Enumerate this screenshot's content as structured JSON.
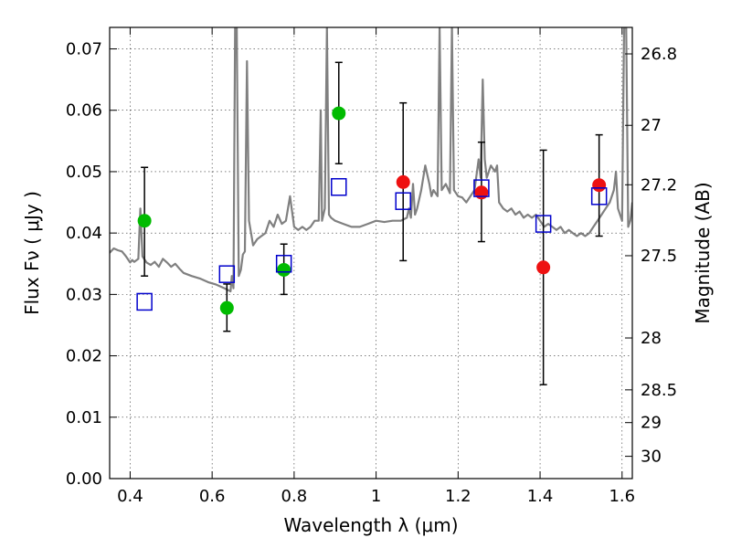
{
  "chart_data": {
    "type": "scatter",
    "title": "",
    "xlabel": "Wavelength  λ (μm)",
    "ylabel": "Flux  Fν  ( μJy )",
    "ylabel_right": "Magnitude (AB)",
    "xlim": [
      0.35,
      1.625
    ],
    "ylim": [
      0.0,
      0.0735
    ],
    "grid": true,
    "x_ticks": [
      0.4,
      0.6,
      0.8,
      1.0,
      1.2,
      1.4,
      1.6
    ],
    "x_tick_labels": [
      "0.4",
      "0.6",
      "0.8",
      "1",
      "1.2",
      "1.4",
      "1.6"
    ],
    "y_ticks": [
      0.0,
      0.01,
      0.02,
      0.03,
      0.04,
      0.05,
      0.06,
      0.07
    ],
    "y_tick_labels": [
      "0.00",
      "0.01",
      "0.02",
      "0.03",
      "0.04",
      "0.05",
      "0.06",
      "0.07"
    ],
    "mag_ticks": [
      "26.8",
      "27",
      "27.2",
      "27.5",
      "28",
      "28.5",
      "29",
      "30"
    ],
    "series": [
      {
        "style": "green-circle-errorbar",
        "color": "#00bb00",
        "points": [
          {
            "x": 0.435,
            "y": 0.042,
            "lo": 0.033,
            "hi": 0.0507
          },
          {
            "x": 0.636,
            "y": 0.0278,
            "lo": 0.024,
            "hi": 0.0317
          },
          {
            "x": 0.775,
            "y": 0.034,
            "lo": 0.03,
            "hi": 0.0382
          },
          {
            "x": 0.909,
            "y": 0.0595,
            "lo": 0.0513,
            "hi": 0.0678
          }
        ]
      },
      {
        "style": "red-circle-errorbar",
        "color": "#ee1111",
        "points": [
          {
            "x": 1.066,
            "y": 0.0483,
            "lo": 0.0355,
            "hi": 0.0612
          },
          {
            "x": 1.257,
            "y": 0.0466,
            "lo": 0.0386,
            "hi": 0.0548
          },
          {
            "x": 1.408,
            "y": 0.0344,
            "lo": 0.0153,
            "hi": 0.0535
          },
          {
            "x": 1.544,
            "y": 0.0478,
            "lo": 0.0395,
            "hi": 0.056
          }
        ]
      },
      {
        "style": "blue-open-square",
        "color": "#0000cc",
        "points": [
          {
            "x": 0.435,
            "y": 0.0288
          },
          {
            "x": 0.636,
            "y": 0.0333
          },
          {
            "x": 0.775,
            "y": 0.035
          },
          {
            "x": 0.909,
            "y": 0.0475
          },
          {
            "x": 1.066,
            "y": 0.0452
          },
          {
            "x": 1.257,
            "y": 0.0473
          },
          {
            "x": 1.408,
            "y": 0.0415
          },
          {
            "x": 1.544,
            "y": 0.046
          }
        ]
      }
    ],
    "spectrum": {
      "color": "#808080",
      "points": [
        [
          0.35,
          0.0368
        ],
        [
          0.36,
          0.0375
        ],
        [
          0.37,
          0.0372
        ],
        [
          0.38,
          0.037
        ],
        [
          0.39,
          0.0362
        ],
        [
          0.4,
          0.0352
        ],
        [
          0.405,
          0.0356
        ],
        [
          0.41,
          0.0353
        ],
        [
          0.42,
          0.0358
        ],
        [
          0.425,
          0.044
        ],
        [
          0.43,
          0.0362
        ],
        [
          0.44,
          0.0352
        ],
        [
          0.45,
          0.0348
        ],
        [
          0.46,
          0.0353
        ],
        [
          0.47,
          0.0345
        ],
        [
          0.48,
          0.0358
        ],
        [
          0.49,
          0.0352
        ],
        [
          0.5,
          0.0345
        ],
        [
          0.51,
          0.035
        ],
        [
          0.52,
          0.0342
        ],
        [
          0.53,
          0.0335
        ],
        [
          0.55,
          0.033
        ],
        [
          0.57,
          0.0326
        ],
        [
          0.59,
          0.032
        ],
        [
          0.61,
          0.0316
        ],
        [
          0.63,
          0.031
        ],
        [
          0.645,
          0.0305
        ],
        [
          0.648,
          0.033
        ],
        [
          0.652,
          0.031
        ],
        [
          0.656,
          0.0735
        ],
        [
          0.66,
          0.0735
        ],
        [
          0.665,
          0.033
        ],
        [
          0.67,
          0.034
        ],
        [
          0.675,
          0.0365
        ],
        [
          0.68,
          0.037
        ],
        [
          0.685,
          0.068
        ],
        [
          0.69,
          0.042
        ],
        [
          0.7,
          0.038
        ],
        [
          0.71,
          0.039
        ],
        [
          0.72,
          0.0395
        ],
        [
          0.73,
          0.04
        ],
        [
          0.74,
          0.042
        ],
        [
          0.75,
          0.041
        ],
        [
          0.76,
          0.043
        ],
        [
          0.77,
          0.0415
        ],
        [
          0.78,
          0.042
        ],
        [
          0.79,
          0.046
        ],
        [
          0.8,
          0.041
        ],
        [
          0.81,
          0.0405
        ],
        [
          0.82,
          0.041
        ],
        [
          0.83,
          0.0405
        ],
        [
          0.84,
          0.041
        ],
        [
          0.85,
          0.042
        ],
        [
          0.86,
          0.042
        ],
        [
          0.865,
          0.06
        ],
        [
          0.868,
          0.042
        ],
        [
          0.875,
          0.044
        ],
        [
          0.88,
          0.0735
        ],
        [
          0.885,
          0.043
        ],
        [
          0.89,
          0.0425
        ],
        [
          0.9,
          0.042
        ],
        [
          0.92,
          0.0415
        ],
        [
          0.94,
          0.041
        ],
        [
          0.96,
          0.041
        ],
        [
          0.98,
          0.0415
        ],
        [
          1.0,
          0.042
        ],
        [
          1.02,
          0.0418
        ],
        [
          1.04,
          0.042
        ],
        [
          1.06,
          0.042
        ],
        [
          1.075,
          0.0425
        ],
        [
          1.08,
          0.044
        ],
        [
          1.085,
          0.0425
        ],
        [
          1.09,
          0.048
        ],
        [
          1.095,
          0.043
        ],
        [
          1.1,
          0.044
        ],
        [
          1.11,
          0.047
        ],
        [
          1.12,
          0.051
        ],
        [
          1.13,
          0.048
        ],
        [
          1.135,
          0.046
        ],
        [
          1.14,
          0.047
        ],
        [
          1.15,
          0.046
        ],
        [
          1.155,
          0.0735
        ],
        [
          1.16,
          0.047
        ],
        [
          1.17,
          0.048
        ],
        [
          1.18,
          0.0465
        ],
        [
          1.185,
          0.0735
        ],
        [
          1.19,
          0.047
        ],
        [
          1.2,
          0.046
        ],
        [
          1.21,
          0.0458
        ],
        [
          1.22,
          0.045
        ],
        [
          1.23,
          0.046
        ],
        [
          1.24,
          0.047
        ],
        [
          1.25,
          0.052
        ],
        [
          1.255,
          0.049
        ],
        [
          1.26,
          0.065
        ],
        [
          1.265,
          0.052
        ],
        [
          1.27,
          0.049
        ],
        [
          1.28,
          0.051
        ],
        [
          1.29,
          0.05
        ],
        [
          1.295,
          0.051
        ],
        [
          1.3,
          0.045
        ],
        [
          1.31,
          0.044
        ],
        [
          1.32,
          0.0435
        ],
        [
          1.33,
          0.044
        ],
        [
          1.34,
          0.043
        ],
        [
          1.35,
          0.0435
        ],
        [
          1.36,
          0.0425
        ],
        [
          1.37,
          0.043
        ],
        [
          1.38,
          0.0425
        ],
        [
          1.39,
          0.043
        ],
        [
          1.4,
          0.042
        ],
        [
          1.41,
          0.041
        ],
        [
          1.42,
          0.0415
        ],
        [
          1.43,
          0.041
        ],
        [
          1.44,
          0.0405
        ],
        [
          1.45,
          0.041
        ],
        [
          1.46,
          0.04
        ],
        [
          1.47,
          0.0405
        ],
        [
          1.48,
          0.04
        ],
        [
          1.49,
          0.0395
        ],
        [
          1.5,
          0.04
        ],
        [
          1.51,
          0.0395
        ],
        [
          1.52,
          0.04
        ],
        [
          1.53,
          0.041
        ],
        [
          1.54,
          0.042
        ],
        [
          1.55,
          0.043
        ],
        [
          1.56,
          0.044
        ],
        [
          1.57,
          0.045
        ],
        [
          1.58,
          0.047
        ],
        [
          1.585,
          0.05
        ],
        [
          1.59,
          0.044
        ],
        [
          1.6,
          0.042
        ],
        [
          1.605,
          0.0735
        ],
        [
          1.61,
          0.0735
        ],
        [
          1.615,
          0.041
        ],
        [
          1.62,
          0.042
        ],
        [
          1.625,
          0.045
        ]
      ]
    }
  }
}
